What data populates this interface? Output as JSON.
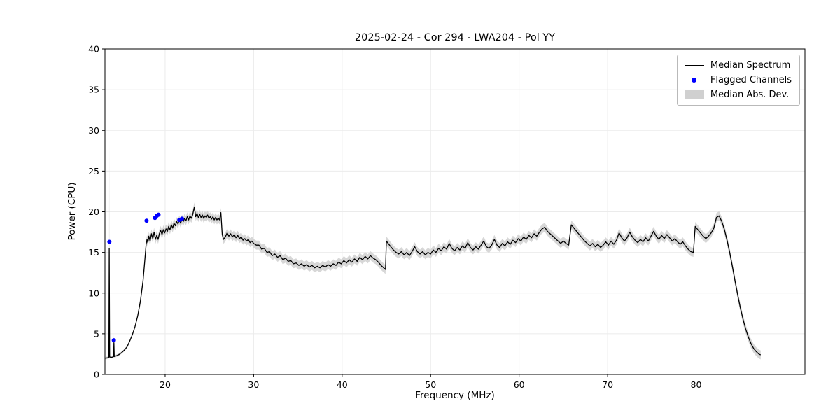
{
  "chart_data": {
    "type": "line",
    "title": "2025-02-24 - Cor 294 - LWA204 - Pol YY",
    "xlabel": "Frequency (MHz)",
    "ylabel": "Power (CPU)",
    "xlim": [
      13.2,
      92.3
    ],
    "ylim": [
      0,
      40
    ],
    "xticks": [
      20,
      30,
      40,
      50,
      60,
      70,
      80
    ],
    "yticks": [
      0,
      5,
      10,
      15,
      20,
      25,
      30,
      35,
      40
    ],
    "grid": true,
    "legend": {
      "position": "upper right",
      "items": [
        "Median Spectrum",
        "Flagged Channels",
        "Median Abs. Dev."
      ]
    },
    "colors": {
      "line": "#000000",
      "flagged": "#0000ff",
      "band": "#d0d0d0",
      "grid": "#ebebeb",
      "frame": "#000000"
    },
    "series": {
      "name": "Median Spectrum",
      "points": [
        [
          13.25,
          2.0
        ],
        [
          13.5,
          2.05
        ],
        [
          13.64,
          2.1
        ],
        [
          13.68,
          15.5
        ],
        [
          13.73,
          2.15
        ],
        [
          13.9,
          2.1
        ],
        [
          14.1,
          2.15
        ],
        [
          14.18,
          2.2
        ],
        [
          14.21,
          3.9
        ],
        [
          14.25,
          2.2
        ],
        [
          14.5,
          2.3
        ],
        [
          14.8,
          2.45
        ],
        [
          15.1,
          2.7
        ],
        [
          15.4,
          3.0
        ],
        [
          15.7,
          3.4
        ],
        [
          16.0,
          4.1
        ],
        [
          16.3,
          4.9
        ],
        [
          16.6,
          5.9
        ],
        [
          16.9,
          7.2
        ],
        [
          17.2,
          9.0
        ],
        [
          17.5,
          11.5
        ],
        [
          17.7,
          14.0
        ],
        [
          17.85,
          16.0
        ],
        [
          17.95,
          16.6
        ],
        [
          18.05,
          16.2
        ],
        [
          18.15,
          17.0
        ],
        [
          18.3,
          16.4
        ],
        [
          18.45,
          17.3
        ],
        [
          18.6,
          16.7
        ],
        [
          18.75,
          17.5
        ],
        [
          18.9,
          16.6
        ],
        [
          19.05,
          17.1
        ],
        [
          19.2,
          16.6
        ],
        [
          19.35,
          17.3
        ],
        [
          19.5,
          17.7
        ],
        [
          19.65,
          17.2
        ],
        [
          19.8,
          17.8
        ],
        [
          19.95,
          17.4
        ],
        [
          20.1,
          17.9
        ],
        [
          20.25,
          17.6
        ],
        [
          20.4,
          18.2
        ],
        [
          20.55,
          17.8
        ],
        [
          20.7,
          18.4
        ],
        [
          20.85,
          18.0
        ],
        [
          21.0,
          18.6
        ],
        [
          21.15,
          18.3
        ],
        [
          21.3,
          18.8
        ],
        [
          21.45,
          18.5
        ],
        [
          21.6,
          19.0
        ],
        [
          21.75,
          18.6
        ],
        [
          21.9,
          19.1
        ],
        [
          22.05,
          18.8
        ],
        [
          22.2,
          19.2
        ],
        [
          22.35,
          18.9
        ],
        [
          22.5,
          19.4
        ],
        [
          22.65,
          19.0
        ],
        [
          22.8,
          19.5
        ],
        [
          22.95,
          19.2
        ],
        [
          23.1,
          19.6
        ],
        [
          23.3,
          20.6
        ],
        [
          23.45,
          19.4
        ],
        [
          23.6,
          19.8
        ],
        [
          23.75,
          19.3
        ],
        [
          23.9,
          19.7
        ],
        [
          24.05,
          19.3
        ],
        [
          24.2,
          19.6
        ],
        [
          24.35,
          19.2
        ],
        [
          24.5,
          19.5
        ],
        [
          24.65,
          19.3
        ],
        [
          24.8,
          19.6
        ],
        [
          24.95,
          19.2
        ],
        [
          25.1,
          19.4
        ],
        [
          25.25,
          19.1
        ],
        [
          25.4,
          19.4
        ],
        [
          25.55,
          19.0
        ],
        [
          25.7,
          19.3
        ],
        [
          25.85,
          19.0
        ],
        [
          26.0,
          19.2
        ],
        [
          26.15,
          19.0
        ],
        [
          26.3,
          19.9
        ],
        [
          26.45,
          17.2
        ],
        [
          26.6,
          16.6
        ],
        [
          26.8,
          16.9
        ],
        [
          27.0,
          17.4
        ],
        [
          27.2,
          17.0
        ],
        [
          27.4,
          17.3
        ],
        [
          27.6,
          16.9
        ],
        [
          27.8,
          17.2
        ],
        [
          28.0,
          16.8
        ],
        [
          28.2,
          17.1
        ],
        [
          28.4,
          16.7
        ],
        [
          28.6,
          16.9
        ],
        [
          28.8,
          16.5
        ],
        [
          29.0,
          16.7
        ],
        [
          29.2,
          16.4
        ],
        [
          29.4,
          16.6
        ],
        [
          29.6,
          16.2
        ],
        [
          29.8,
          16.4
        ],
        [
          30.0,
          16.1
        ],
        [
          30.3,
          15.9
        ],
        [
          30.6,
          15.9
        ],
        [
          30.9,
          15.4
        ],
        [
          31.2,
          15.5
        ],
        [
          31.5,
          15.0
        ],
        [
          31.8,
          15.1
        ],
        [
          32.1,
          14.6
        ],
        [
          32.4,
          14.8
        ],
        [
          32.7,
          14.4
        ],
        [
          33.0,
          14.6
        ],
        [
          33.3,
          14.1
        ],
        [
          33.6,
          14.3
        ],
        [
          33.9,
          13.9
        ],
        [
          34.2,
          14.0
        ],
        [
          34.5,
          13.6
        ],
        [
          34.8,
          13.7
        ],
        [
          35.1,
          13.4
        ],
        [
          35.4,
          13.6
        ],
        [
          35.7,
          13.3
        ],
        [
          36.0,
          13.5
        ],
        [
          36.3,
          13.2
        ],
        [
          36.6,
          13.4
        ],
        [
          36.9,
          13.1
        ],
        [
          37.2,
          13.3
        ],
        [
          37.5,
          13.1
        ],
        [
          37.8,
          13.4
        ],
        [
          38.1,
          13.2
        ],
        [
          38.4,
          13.5
        ],
        [
          38.7,
          13.3
        ],
        [
          39.0,
          13.6
        ],
        [
          39.3,
          13.4
        ],
        [
          39.6,
          13.8
        ],
        [
          39.9,
          13.6
        ],
        [
          40.2,
          14.0
        ],
        [
          40.5,
          13.7
        ],
        [
          40.8,
          14.1
        ],
        [
          41.1,
          13.8
        ],
        [
          41.4,
          14.2
        ],
        [
          41.7,
          13.9
        ],
        [
          42.0,
          14.4
        ],
        [
          42.3,
          14.1
        ],
        [
          42.6,
          14.5
        ],
        [
          42.9,
          14.2
        ],
        [
          43.2,
          14.6
        ],
        [
          43.5,
          14.3
        ],
        [
          43.8,
          14.1
        ],
        [
          44.1,
          13.8
        ],
        [
          44.4,
          13.4
        ],
        [
          44.7,
          13.1
        ],
        [
          44.9,
          12.9
        ],
        [
          45.0,
          16.4
        ],
        [
          45.2,
          16.1
        ],
        [
          45.5,
          15.7
        ],
        [
          45.8,
          15.3
        ],
        [
          46.1,
          15.0
        ],
        [
          46.4,
          14.8
        ],
        [
          46.7,
          15.1
        ],
        [
          47.0,
          14.7
        ],
        [
          47.3,
          15.0
        ],
        [
          47.6,
          14.6
        ],
        [
          47.9,
          15.1
        ],
        [
          48.2,
          15.7
        ],
        [
          48.5,
          15.1
        ],
        [
          48.8,
          14.8
        ],
        [
          49.1,
          15.1
        ],
        [
          49.4,
          14.7
        ],
        [
          49.7,
          15.0
        ],
        [
          50.0,
          14.8
        ],
        [
          50.3,
          15.3
        ],
        [
          50.6,
          15.0
        ],
        [
          50.9,
          15.5
        ],
        [
          51.2,
          15.2
        ],
        [
          51.5,
          15.7
        ],
        [
          51.8,
          15.4
        ],
        [
          52.1,
          16.1
        ],
        [
          52.4,
          15.5
        ],
        [
          52.7,
          15.2
        ],
        [
          53.0,
          15.6
        ],
        [
          53.3,
          15.3
        ],
        [
          53.6,
          15.8
        ],
        [
          53.9,
          15.5
        ],
        [
          54.2,
          16.2
        ],
        [
          54.5,
          15.6
        ],
        [
          54.8,
          15.3
        ],
        [
          55.1,
          15.7
        ],
        [
          55.4,
          15.4
        ],
        [
          55.7,
          15.9
        ],
        [
          56.0,
          16.4
        ],
        [
          56.3,
          15.7
        ],
        [
          56.6,
          15.5
        ],
        [
          56.9,
          15.9
        ],
        [
          57.2,
          16.6
        ],
        [
          57.5,
          15.9
        ],
        [
          57.8,
          15.6
        ],
        [
          58.1,
          16.1
        ],
        [
          58.4,
          15.8
        ],
        [
          58.7,
          16.3
        ],
        [
          59.0,
          16.0
        ],
        [
          59.3,
          16.5
        ],
        [
          59.6,
          16.2
        ],
        [
          59.9,
          16.7
        ],
        [
          60.2,
          16.4
        ],
        [
          60.5,
          16.9
        ],
        [
          60.8,
          16.6
        ],
        [
          61.1,
          17.1
        ],
        [
          61.4,
          16.8
        ],
        [
          61.7,
          17.3
        ],
        [
          62.0,
          17.0
        ],
        [
          62.3,
          17.5
        ],
        [
          62.6,
          17.9
        ],
        [
          62.9,
          18.1
        ],
        [
          63.2,
          17.6
        ],
        [
          63.5,
          17.3
        ],
        [
          63.8,
          17.0
        ],
        [
          64.1,
          16.7
        ],
        [
          64.4,
          16.4
        ],
        [
          64.7,
          16.1
        ],
        [
          65.0,
          16.4
        ],
        [
          65.3,
          16.1
        ],
        [
          65.6,
          15.9
        ],
        [
          65.9,
          18.4
        ],
        [
          66.2,
          18.0
        ],
        [
          66.5,
          17.6
        ],
        [
          66.8,
          17.2
        ],
        [
          67.1,
          16.8
        ],
        [
          67.4,
          16.4
        ],
        [
          67.7,
          16.1
        ],
        [
          68.0,
          15.8
        ],
        [
          68.3,
          16.1
        ],
        [
          68.6,
          15.7
        ],
        [
          68.9,
          16.0
        ],
        [
          69.2,
          15.6
        ],
        [
          69.5,
          15.9
        ],
        [
          69.8,
          16.3
        ],
        [
          70.1,
          15.9
        ],
        [
          70.4,
          16.4
        ],
        [
          70.7,
          16.0
        ],
        [
          71.0,
          16.5
        ],
        [
          71.3,
          17.4
        ],
        [
          71.6,
          16.8
        ],
        [
          71.9,
          16.4
        ],
        [
          72.2,
          16.8
        ],
        [
          72.5,
          17.5
        ],
        [
          72.8,
          16.9
        ],
        [
          73.1,
          16.5
        ],
        [
          73.4,
          16.2
        ],
        [
          73.7,
          16.6
        ],
        [
          74.0,
          16.3
        ],
        [
          74.3,
          16.8
        ],
        [
          74.6,
          16.4
        ],
        [
          74.9,
          17.0
        ],
        [
          75.2,
          17.6
        ],
        [
          75.5,
          17.0
        ],
        [
          75.8,
          16.6
        ],
        [
          76.1,
          17.1
        ],
        [
          76.4,
          16.7
        ],
        [
          76.7,
          17.2
        ],
        [
          77.0,
          16.8
        ],
        [
          77.3,
          16.4
        ],
        [
          77.6,
          16.7
        ],
        [
          77.9,
          16.3
        ],
        [
          78.2,
          16.0
        ],
        [
          78.5,
          16.3
        ],
        [
          78.8,
          15.8
        ],
        [
          79.1,
          15.4
        ],
        [
          79.4,
          15.1
        ],
        [
          79.7,
          15.0
        ],
        [
          79.9,
          18.2
        ],
        [
          80.2,
          17.8
        ],
        [
          80.5,
          17.4
        ],
        [
          80.8,
          17.0
        ],
        [
          81.1,
          16.7
        ],
        [
          81.4,
          17.0
        ],
        [
          81.7,
          17.4
        ],
        [
          82.0,
          18.0
        ],
        [
          82.3,
          19.3
        ],
        [
          82.6,
          19.5
        ],
        [
          82.9,
          18.8
        ],
        [
          83.2,
          17.8
        ],
        [
          83.5,
          16.5
        ],
        [
          83.8,
          15.0
        ],
        [
          84.1,
          13.3
        ],
        [
          84.4,
          11.5
        ],
        [
          84.7,
          9.8
        ],
        [
          85.0,
          8.2
        ],
        [
          85.3,
          6.8
        ],
        [
          85.6,
          5.6
        ],
        [
          85.9,
          4.6
        ],
        [
          86.2,
          3.8
        ],
        [
          86.5,
          3.2
        ],
        [
          86.8,
          2.8
        ],
        [
          87.1,
          2.5
        ],
        [
          87.3,
          2.4
        ]
      ]
    },
    "flagged_channels": {
      "name": "Flagged Channels",
      "points": [
        [
          13.7,
          16.3
        ],
        [
          14.2,
          4.2
        ],
        [
          17.9,
          18.9
        ],
        [
          18.85,
          19.25
        ],
        [
          19.05,
          19.5
        ],
        [
          19.25,
          19.65
        ],
        [
          21.6,
          19.0
        ],
        [
          21.9,
          19.15
        ]
      ]
    },
    "mad_band": {
      "name": "Median Abs. Dev.",
      "default_mad": 0.55,
      "ramp_below": 17,
      "ramp_value": 0.15,
      "overrides": [
        {
          "x": 13.68,
          "mad": 13.3
        },
        {
          "x": 14.21,
          "mad": 1.2
        }
      ]
    }
  }
}
